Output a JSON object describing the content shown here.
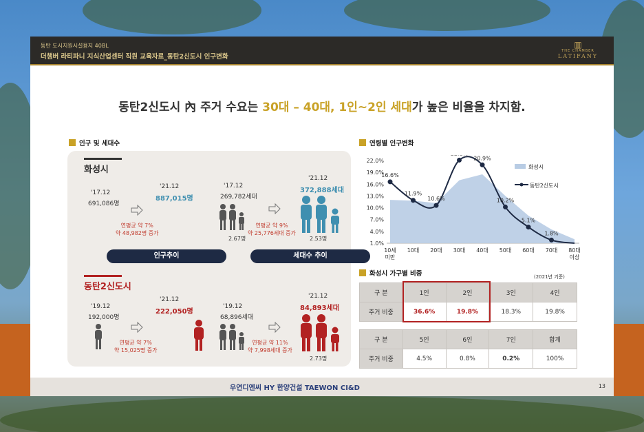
{
  "header": {
    "subtitle": "동탄 도시지원시설용지 40BL",
    "title": "더챔버 라티파니 지식산업센터 직원 교육자료_동탄2신도시 인구변화",
    "logo_small": "THE CHAMBER",
    "logo_brand": "LATIFANY"
  },
  "headline": {
    "part1": "동탄2신도시 內 주거 수요는 ",
    "highlight": "30대 – 40대, 1인~2인 세대",
    "part2": "가 높은 비율을 차지함."
  },
  "section_population": "인구 및 세대수",
  "section_age": "연령별 인구변화",
  "section_household": "화성시 가구별 비중",
  "household_note": "(2021년 기준)",
  "hwaseong": {
    "name": "화성시",
    "pop": {
      "from_year": "'17.12",
      "from_val": "691,086명",
      "to_year": "'21.12",
      "to_val": "887,015명",
      "growth1": "연평균 약 7%",
      "growth2": "약 48,982명 증가"
    },
    "hh": {
      "from_year": "'17.12",
      "from_val": "269,782세대",
      "to_year": "'21.12",
      "to_val": "372,888세대",
      "growth1": "연평균 약 9%",
      "growth2": "약 25,776세대 증가",
      "from_size": "2.67명",
      "to_size": "2.53명"
    }
  },
  "dongtan": {
    "name": "동탄2신도시",
    "pop": {
      "from_year": "'19.12",
      "from_val": "192,000명",
      "to_year": "'21.12",
      "to_val": "222,050명",
      "growth1": "연평균 약 7%",
      "growth2": "약 15,025명 증가"
    },
    "hh": {
      "from_year": "'19.12",
      "from_val": "68,896세대",
      "to_year": "'21.12",
      "to_val": "84,893세대",
      "growth1": "연평균 약 11%",
      "growth2": "약 7,998세대 증가",
      "to_size": "2.73명"
    }
  },
  "pills": {
    "population": "인구추이",
    "household": "세대수 추이"
  },
  "chart_data": {
    "type": "line",
    "title": "",
    "categories": [
      "10세 미만",
      "10대",
      "20대",
      "30대",
      "40대",
      "50대",
      "60대",
      "70대",
      "80대 이상"
    ],
    "y_ticks": [
      "22.0%",
      "19.0%",
      "16.0%",
      "13.0%",
      "10.0%",
      "7.0%",
      "4.0%",
      "1.0%"
    ],
    "ylim": [
      1.0,
      22.0
    ],
    "series": [
      {
        "name": "화성시",
        "type": "area",
        "color": "#b8cce4",
        "values": [
          12.0,
          11.8,
          11.2,
          17.0,
          18.5,
          13.0,
          8.0,
          4.5,
          2.0
        ]
      },
      {
        "name": "동탄2신도시",
        "type": "line",
        "color": "#1e2a44",
        "values": [
          16.6,
          11.9,
          10.6,
          22.1,
          20.9,
          10.2,
          5.1,
          1.8,
          0.9
        ],
        "labels": [
          "16.6%",
          "11.9%",
          "10.6%",
          "22.1%",
          "20.9%",
          "10.2%",
          "5.1%",
          "1.8%",
          ""
        ]
      }
    ],
    "legend_position": "top-right"
  },
  "table1": {
    "headers": [
      "구 분",
      "1인",
      "2인",
      "3인",
      "4인"
    ],
    "row": [
      "주거 비중",
      "36.6%",
      "19.8%",
      "18.3%",
      "19.8%"
    ]
  },
  "table2": {
    "headers": [
      "구 분",
      "5인",
      "6인",
      "7인",
      "합계"
    ],
    "row": [
      "주거 비중",
      "4.5%",
      "0.8%",
      "0.2%",
      "100%"
    ]
  },
  "footer": {
    "logos": "우연디엔씨  HY 한양건설  TAEWON  CI&D",
    "page": "13"
  }
}
